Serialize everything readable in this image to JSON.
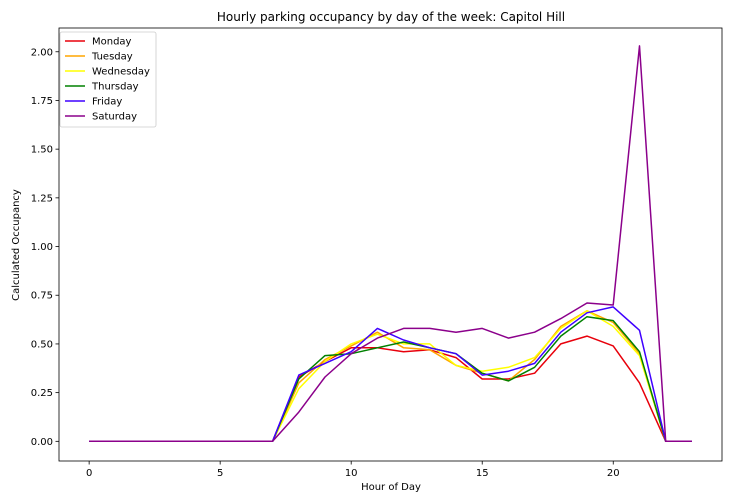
{
  "chart_data": {
    "type": "line",
    "title": "Hourly parking occupancy by day of the week: Capitol Hill",
    "xlabel": "Hour of Day",
    "ylabel": "Calculated Occupancy",
    "xlim": [
      -1.15,
      24.15
    ],
    "ylim": [
      -0.101,
      2.122
    ],
    "xticks": [
      0,
      5,
      10,
      15,
      20
    ],
    "xtick_labels": [
      "0",
      "5",
      "10",
      "15",
      "20"
    ],
    "yticks": [
      0.0,
      0.25,
      0.5,
      0.75,
      1.0,
      1.25,
      1.5,
      1.75,
      2.0
    ],
    "ytick_labels": [
      "0.00",
      "0.25",
      "0.50",
      "0.75",
      "1.00",
      "1.25",
      "1.50",
      "1.75",
      "2.00"
    ],
    "legend_position": "top-left",
    "grid": false,
    "x": [
      0,
      1,
      2,
      3,
      4,
      5,
      6,
      7,
      8,
      9,
      10,
      11,
      12,
      13,
      14,
      15,
      16,
      17,
      18,
      19,
      20,
      21,
      22,
      23
    ],
    "series": [
      {
        "name": "Monday",
        "color": "#e8000b",
        "values": [
          0,
          0,
          0,
          0,
          0,
          0,
          0,
          0,
          0.33,
          0.41,
          0.48,
          0.48,
          0.46,
          0.47,
          0.43,
          0.32,
          0.32,
          0.35,
          0.5,
          0.54,
          0.49,
          0.3,
          0,
          0
        ]
      },
      {
        "name": "Tuesday",
        "color": "#ffa500",
        "values": [
          0,
          0,
          0,
          0,
          0,
          0,
          0,
          0,
          0.3,
          0.42,
          0.49,
          0.56,
          0.48,
          0.47,
          0.39,
          0.35,
          0.31,
          0.42,
          0.59,
          0.67,
          0.61,
          0.45,
          0,
          0
        ]
      },
      {
        "name": "Wednesday",
        "color": "#ffff00",
        "values": [
          0,
          0,
          0,
          0,
          0,
          0,
          0,
          0,
          0.27,
          0.41,
          0.5,
          0.55,
          0.5,
          0.5,
          0.39,
          0.36,
          0.38,
          0.43,
          0.58,
          0.67,
          0.59,
          0.44,
          0,
          0
        ]
      },
      {
        "name": "Thursday",
        "color": "#008000",
        "values": [
          0,
          0,
          0,
          0,
          0,
          0,
          0,
          0,
          0.32,
          0.44,
          0.45,
          0.48,
          0.51,
          0.48,
          0.45,
          0.35,
          0.31,
          0.38,
          0.54,
          0.64,
          0.62,
          0.46,
          0,
          0
        ]
      },
      {
        "name": "Friday",
        "color": "#3f00ff",
        "values": [
          0,
          0,
          0,
          0,
          0,
          0,
          0,
          0,
          0.34,
          0.4,
          0.46,
          0.58,
          0.52,
          0.48,
          0.45,
          0.34,
          0.36,
          0.4,
          0.56,
          0.66,
          0.69,
          0.57,
          0,
          0
        ]
      },
      {
        "name": "Saturday",
        "color": "#8b008b",
        "values": [
          0,
          0,
          0,
          0,
          0,
          0,
          0,
          0,
          0.15,
          0.33,
          0.45,
          0.53,
          0.58,
          0.58,
          0.56,
          0.58,
          0.53,
          0.56,
          0.63,
          0.71,
          0.7,
          2.03,
          0,
          0
        ]
      }
    ]
  }
}
